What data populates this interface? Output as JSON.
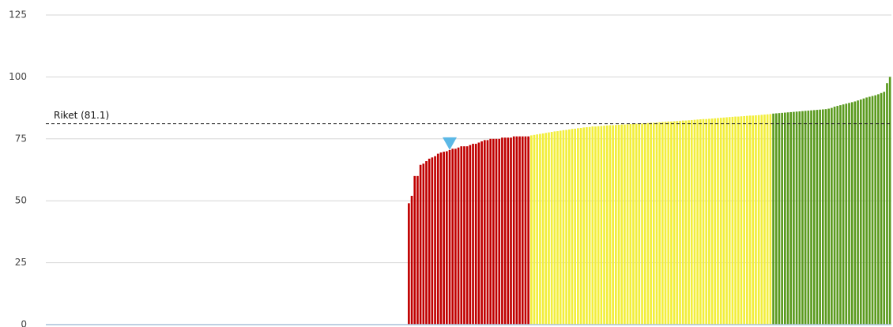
{
  "chart_data": {
    "type": "bar",
    "categories": [
      null,
      null,
      null,
      null,
      null,
      null,
      null,
      null,
      null,
      null,
      null,
      null,
      null,
      null,
      null,
      null,
      null,
      null,
      null,
      null,
      null,
      null,
      null,
      null,
      null,
      null,
      null,
      null,
      null,
      null,
      null,
      null,
      null,
      null,
      null,
      null,
      null,
      null,
      null,
      null,
      null,
      null,
      null,
      null,
      null,
      null,
      null,
      null,
      null,
      null,
      null,
      null,
      null,
      null,
      null,
      null,
      null,
      null,
      null,
      null,
      null,
      null,
      null,
      null,
      null,
      null,
      null,
      null,
      null,
      null,
      null,
      null,
      null,
      null,
      null,
      null,
      null,
      null,
      null,
      null,
      null,
      null,
      null,
      null,
      null,
      null,
      null,
      null,
      null,
      null,
      null,
      null,
      null,
      null,
      null,
      null,
      null,
      null,
      null,
      null,
      null,
      null,
      null,
      null,
      null,
      null,
      null,
      null,
      null,
      null,
      null,
      null,
      null,
      null,
      null,
      null,
      null,
      null,
      null,
      null,
      null,
      null,
      null,
      null,
      null,
      null,
      null,
      null,
      null,
      null,
      null,
      null,
      null,
      null,
      null,
      null,
      null,
      null,
      null,
      null,
      null,
      null,
      null,
      null,
      null,
      null,
      null,
      null,
      null,
      null,
      null,
      null,
      null,
      null,
      null,
      null,
      null,
      null,
      null,
      null,
      null,
      null,
      null,
      null,
      null,
      null,
      null,
      null,
      null,
      null,
      null,
      null,
      null,
      null,
      null,
      null,
      null,
      null,
      null,
      null,
      null,
      null,
      null,
      null,
      null,
      null,
      null,
      null,
      null,
      null,
      null,
      null,
      null,
      null,
      null,
      null,
      null,
      null,
      null,
      null,
      null,
      null,
      null,
      null,
      null,
      null,
      null,
      null,
      null,
      null,
      null,
      null,
      null,
      null,
      null,
      null,
      null,
      null,
      null,
      null,
      null,
      null,
      null,
      null,
      null,
      null,
      null,
      null,
      null,
      null,
      null,
      null,
      null,
      null,
      null,
      null,
      null,
      null,
      null,
      null,
      null,
      null,
      null,
      null,
      null,
      null,
      null,
      null,
      null,
      null,
      null,
      null,
      null,
      null,
      null,
      null,
      null,
      null,
      null,
      null,
      null,
      null,
      null,
      null,
      null,
      null,
      null,
      null,
      null,
      null,
      null,
      null,
      null,
      null,
      null,
      null,
      null,
      null,
      null,
      null,
      null,
      null,
      null,
      null,
      null,
      null,
      null,
      null,
      null,
      null
    ],
    "values": [
      null,
      null,
      null,
      null,
      null,
      null,
      null,
      null,
      null,
      null,
      null,
      null,
      null,
      null,
      null,
      null,
      null,
      null,
      null,
      null,
      null,
      null,
      null,
      null,
      null,
      null,
      null,
      null,
      null,
      null,
      null,
      null,
      null,
      null,
      null,
      null,
      null,
      null,
      null,
      null,
      null,
      null,
      null,
      null,
      null,
      null,
      null,
      null,
      null,
      null,
      null,
      null,
      null,
      null,
      null,
      null,
      null,
      null,
      null,
      null,
      null,
      null,
      null,
      null,
      null,
      null,
      null,
      null,
      null,
      null,
      null,
      null,
      null,
      null,
      null,
      null,
      null,
      null,
      null,
      null,
      null,
      null,
      null,
      null,
      null,
      null,
      null,
      null,
      null,
      null,
      null,
      null,
      null,
      null,
      null,
      null,
      null,
      null,
      null,
      null,
      null,
      null,
      null,
      null,
      null,
      null,
      null,
      null,
      null,
      null,
      null,
      null,
      null,
      null,
      null,
      null,
      null,
      null,
      null,
      null,
      null,
      null,
      null,
      null,
      49,
      52,
      60,
      60,
      64.5,
      65,
      66,
      67,
      67.5,
      68,
      69,
      69.5,
      69.8,
      70,
      70.5,
      71,
      71,
      71.5,
      72,
      72,
      72,
      72.5,
      73,
      73,
      73.5,
      74,
      74.5,
      74.5,
      75,
      75,
      75,
      75,
      75.5,
      75.5,
      75.5,
      75.5,
      76,
      76,
      76,
      76,
      76,
      76,
      76.4,
      76.6,
      76.8,
      77,
      77.2,
      77.4,
      77.6,
      77.8,
      78,
      78.1,
      78.3,
      78.5,
      78.6,
      78.8,
      79,
      79.1,
      79.3,
      79.4,
      79.6,
      79.7,
      79.8,
      80,
      80,
      80.1,
      80.2,
      80.3,
      80.4,
      80.5,
      80.5,
      80.6,
      80.7,
      80.8,
      80.8,
      80.9,
      81,
      81,
      81.1,
      81.2,
      81.2,
      81.3,
      81.4,
      81.5,
      81.5,
      81.6,
      81.7,
      81.8,
      81.9,
      82,
      82,
      82.1,
      82.2,
      82.3,
      82.4,
      82.4,
      82.5,
      82.6,
      82.7,
      82.8,
      82.9,
      83,
      83,
      83.1,
      83.2,
      83.3,
      83.4,
      83.5,
      83.6,
      83.7,
      83.8,
      83.9,
      84,
      84,
      84.1,
      84.2,
      84.3,
      84.4,
      84.4,
      84.5,
      84.6,
      84.7,
      84.8,
      84.9,
      85,
      85.2,
      85.3,
      85.4,
      85.5,
      85.6,
      85.7,
      85.8,
      85.9,
      86,
      86.1,
      86.2,
      86.3,
      86.4,
      86.5,
      86.6,
      86.7,
      86.8,
      86.9,
      87,
      87.2,
      87.5,
      88,
      88.3,
      88.6,
      88.9,
      89.2,
      89.5,
      89.8,
      90.1,
      90.5,
      90.9,
      91.3,
      91.7,
      92,
      92.3,
      92.6,
      93,
      93.5,
      94,
      97.5,
      100
    ],
    "color_scale": [
      {
        "below": 76.3,
        "color": "#c00000"
      },
      {
        "below": 85.1,
        "color": "#f2ee3a"
      },
      {
        "color": "#5a9a1e"
      }
    ],
    "reference_line": {
      "label": "Riket (81.1)",
      "value": 81.1
    },
    "highlight_index": 138,
    "highlight_color": "#5bb8e6",
    "ylim": [
      0,
      125
    ],
    "yticks": [
      0,
      25,
      50,
      75,
      100,
      125
    ],
    "grid": true
  }
}
